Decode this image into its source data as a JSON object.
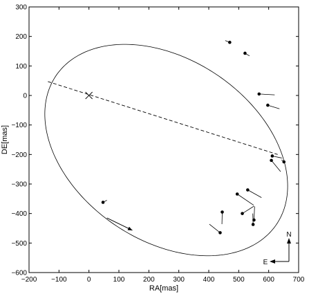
{
  "chart_data": {
    "type": "scatter",
    "xlabel": "RA[mas]",
    "ylabel": "DE[mas]",
    "xlim": [
      -200,
      700
    ],
    "ylim": [
      -600,
      300
    ],
    "xticks": [
      -200,
      -100,
      0,
      100,
      200,
      300,
      400,
      500,
      600,
      700
    ],
    "yticks": [
      -600,
      -500,
      -400,
      -300,
      -200,
      -100,
      0,
      100,
      200,
      300
    ],
    "grid": false,
    "orbit_ellipse": {
      "center": [
        258,
        -185
      ],
      "semi_major": 446,
      "semi_minor": 306,
      "rotation_deg": -35
    },
    "line_of_nodes": {
      "style": "dashed",
      "points": [
        [
          -137,
          47
        ],
        [
          630,
          -200
        ]
      ]
    },
    "primary_star": {
      "marker": "x",
      "position": [
        0,
        0
      ]
    },
    "observations": [
      {
        "observed": [
          47,
          -362
        ],
        "orbit": [
          60,
          -355
        ]
      },
      {
        "observed": [
          470,
          180
        ],
        "orbit": [
          455,
          186
        ]
      },
      {
        "observed": [
          521,
          143
        ],
        "orbit": [
          536,
          134
        ]
      },
      {
        "observed": [
          568,
          5
        ],
        "orbit": [
          620,
          2
        ]
      },
      {
        "observed": [
          597,
          -33
        ],
        "orbit": [
          636,
          -45
        ]
      },
      {
        "observed": [
          612,
          -205
        ],
        "orbit": [
          644,
          -212
        ]
      },
      {
        "observed": [
          609,
          -220
        ],
        "orbit": [
          640,
          -258
        ]
      },
      {
        "observed": [
          651,
          -225
        ],
        "orbit": [
          643,
          -218
        ]
      },
      {
        "observed": [
          530,
          -320
        ],
        "orbit": [
          576,
          -346
        ]
      },
      {
        "observed": [
          495,
          -334
        ],
        "orbit": [
          550,
          -372
        ]
      },
      {
        "observed": [
          445,
          -395
        ],
        "orbit": [
          444,
          -436
        ]
      },
      {
        "observed": [
          512,
          -400
        ],
        "orbit": [
          551,
          -375
        ]
      },
      {
        "observed": [
          551,
          -422
        ],
        "orbit": [
          553,
          -376
        ]
      },
      {
        "observed": [
          548,
          -437
        ],
        "orbit": [
          547,
          -400
        ]
      },
      {
        "observed": [
          438,
          -465
        ],
        "orbit": [
          402,
          -436
        ]
      }
    ],
    "motion_arrow": {
      "from": [
        60,
        -415
      ],
      "to": [
        145,
        -457
      ]
    },
    "compass": {
      "north_label": "N",
      "east_label": "E"
    }
  }
}
